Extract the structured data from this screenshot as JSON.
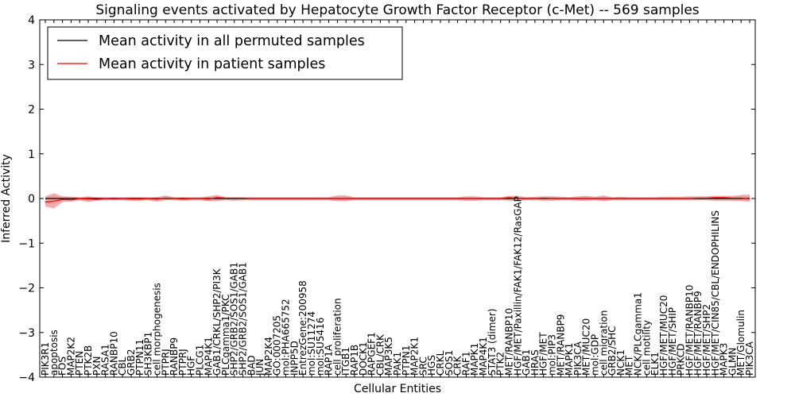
{
  "chart_data": {
    "type": "line",
    "title": "Signaling events activated by Hepatocyte Growth Factor Receptor (c-Met) -- 569 samples",
    "xlabel": "Cellular Entities",
    "ylabel": "Inferred Activity",
    "ylim": [
      -4,
      4
    ],
    "yticks": [
      "−4",
      "−3",
      "−2",
      "−1",
      "0",
      "1",
      "2",
      "3",
      "4"
    ],
    "legend": {
      "position": "top-left",
      "entries": [
        {
          "label": "Mean activity in all permuted samples",
          "color": "#000000"
        },
        {
          "label": "Mean activity in patient samples",
          "color": "#ff0000"
        }
      ]
    },
    "categories": [
      "PIK3R1",
      "apoptosis",
      "FOS",
      "MAP2K2",
      "PTEN",
      "PTK2B",
      "PXN",
      "RASA1",
      "RANBP10",
      "CBL",
      "GRB2",
      "PTPN11",
      "SH3KBP1",
      "cell morphogenesis",
      "PTPRJ",
      "RANBP9",
      "PTPRJ",
      "HGF",
      "PLCG1",
      "MAP4K1",
      "GAB1/CRKL/SHP2/PI3K",
      "PLCgamma1/PKC",
      "SHP2/GRB2/SOS1/GAB1",
      "SHP2/GRB2/SOS1/GAB1",
      "BAD",
      "JUN",
      "MAP2K4",
      "GO:0007205",
      "mol:PHA665752",
      "INPP5D",
      "EntrezGene:200958",
      "mol:SU11274",
      "mol:SU5416",
      "RAP1A",
      "cell proliferation",
      "ITGB1",
      "RAP1B",
      "DOCK1",
      "RAPGEF1",
      "CBL/CRK",
      "MAP3K5",
      "PAK1",
      "PTPN1",
      "MAP2K1",
      "SRC",
      "HGS",
      "CRKL",
      "SOS1",
      "CRK",
      "RAF1",
      "MAPK1",
      "MAP4K1",
      "STAT3 (dimer)",
      "PTK2",
      "MET/RANBP10",
      "HGF/MET/Paxillin/FAK1/FAK12/RasGAP",
      "GAB1",
      "HRAS",
      "HGF/MET",
      "mol:PIP3",
      "MET/RANBP9",
      "MAPK1",
      "PIK3CA",
      "MET/MUC20",
      "mol:GDP",
      "cell migration",
      "GRB2/SHC",
      "NCK1",
      "MET",
      "NCK/PLCgamma1",
      "cell motility",
      "ELK1",
      "HGF/MET/MUC20",
      "HGF/MET/SHIP",
      "PRKCD",
      "HGF/MET/RANBP10",
      "HGF/MET/RANBP9",
      "HGF/MET/SHP2",
      "HGF/MET/CIN85/CBL/ENDOPHILINS",
      "MAPK3",
      "GLMN",
      "MET/Glomulin",
      "PIK3CA"
    ],
    "series": [
      {
        "name": "Mean activity in all permuted samples",
        "values": [
          0,
          0,
          0,
          0,
          0,
          0,
          0,
          0,
          0,
          0,
          0,
          0,
          0,
          0,
          0,
          0,
          0,
          0,
          0,
          0,
          0,
          0,
          0,
          0,
          0,
          0,
          0,
          0,
          0,
          0,
          0,
          0,
          0,
          0,
          0,
          0,
          0,
          0,
          0,
          0,
          0,
          0,
          0,
          0,
          0,
          0,
          0,
          0,
          0,
          0,
          0,
          0,
          0,
          0,
          0,
          0,
          0,
          0,
          0,
          0,
          0,
          0,
          0,
          0,
          0,
          0,
          0,
          0,
          0,
          0,
          0,
          0,
          0,
          0,
          0,
          0,
          0,
          0,
          0,
          0,
          0,
          0,
          0
        ]
      },
      {
        "name": "Mean activity in patient samples",
        "values": [
          -0.08,
          -0.06,
          -0.02,
          -0.03,
          0.0,
          -0.01,
          -0.02,
          0.0,
          -0.01,
          0.0,
          -0.01,
          -0.01,
          0.0,
          -0.01,
          0.01,
          0.0,
          -0.01,
          0.0,
          0.0,
          -0.01,
          0.02,
          0.01,
          0.01,
          0.01,
          0.0,
          0.0,
          0.0,
          0.0,
          0.0,
          0.0,
          0.0,
          0.0,
          0.0,
          0.0,
          0.0,
          0.0,
          0.0,
          0.0,
          0.0,
          0.0,
          0.0,
          0.0,
          0.0,
          0.0,
          0.0,
          0.0,
          0.0,
          0.0,
          0.0,
          0.0,
          0.0,
          0.0,
          0.0,
          0.0,
          0.02,
          0.0,
          0.0,
          0.0,
          0.01,
          0.0,
          0.0,
          0.0,
          0.0,
          0.0,
          0.0,
          0.0,
          0.0,
          0.0,
          0.0,
          0.0,
          0.0,
          0.0,
          0.0,
          0.0,
          0.0,
          0.0,
          0.01,
          0.01,
          0.02,
          0.02,
          0.01,
          0.01,
          -0.01
        ]
      }
    ],
    "band_upper": [
      0.05,
      0.12,
      0.05,
      0.04,
      0.03,
      0.05,
      0.03,
      0.03,
      0.03,
      0.03,
      0.03,
      0.03,
      0.03,
      0.03,
      0.07,
      0.03,
      0.03,
      0.03,
      0.03,
      0.05,
      0.08,
      0.03,
      0.03,
      0.03,
      0.03,
      0.03,
      0.03,
      0.03,
      0.03,
      0.03,
      0.03,
      0.03,
      0.03,
      0.03,
      0.07,
      0.07,
      0.03,
      0.03,
      0.03,
      0.03,
      0.03,
      0.03,
      0.03,
      0.03,
      0.03,
      0.03,
      0.03,
      0.03,
      0.03,
      0.05,
      0.05,
      0.03,
      0.03,
      0.03,
      0.06,
      0.06,
      0.03,
      0.04,
      0.05,
      0.05,
      0.04,
      0.03,
      0.05,
      0.06,
      0.04,
      0.07,
      0.03,
      0.04,
      0.03,
      0.03,
      0.03,
      0.03,
      0.04,
      0.04,
      0.04,
      0.05,
      0.05,
      0.05,
      0.06,
      0.06,
      0.06,
      0.08,
      0.09
    ],
    "band_lower": [
      -0.18,
      -0.22,
      -0.08,
      -0.07,
      -0.04,
      -0.08,
      -0.05,
      -0.04,
      -0.04,
      -0.04,
      -0.05,
      -0.05,
      -0.04,
      -0.07,
      -0.04,
      -0.04,
      -0.05,
      -0.04,
      -0.04,
      -0.06,
      -0.06,
      -0.04,
      -0.05,
      -0.04,
      -0.04,
      -0.04,
      -0.04,
      -0.04,
      -0.04,
      -0.04,
      -0.04,
      -0.04,
      -0.04,
      -0.04,
      -0.06,
      -0.06,
      -0.04,
      -0.04,
      -0.04,
      -0.04,
      -0.04,
      -0.04,
      -0.04,
      -0.04,
      -0.04,
      -0.04,
      -0.04,
      -0.04,
      -0.04,
      -0.05,
      -0.05,
      -0.04,
      -0.04,
      -0.04,
      -0.05,
      -0.05,
      -0.04,
      -0.04,
      -0.05,
      -0.05,
      -0.04,
      -0.04,
      -0.05,
      -0.05,
      -0.04,
      -0.06,
      -0.04,
      -0.04,
      -0.04,
      -0.04,
      -0.04,
      -0.04,
      -0.04,
      -0.04,
      -0.04,
      -0.04,
      -0.04,
      -0.04,
      -0.05,
      -0.05,
      -0.05,
      -0.06,
      -0.07
    ]
  }
}
